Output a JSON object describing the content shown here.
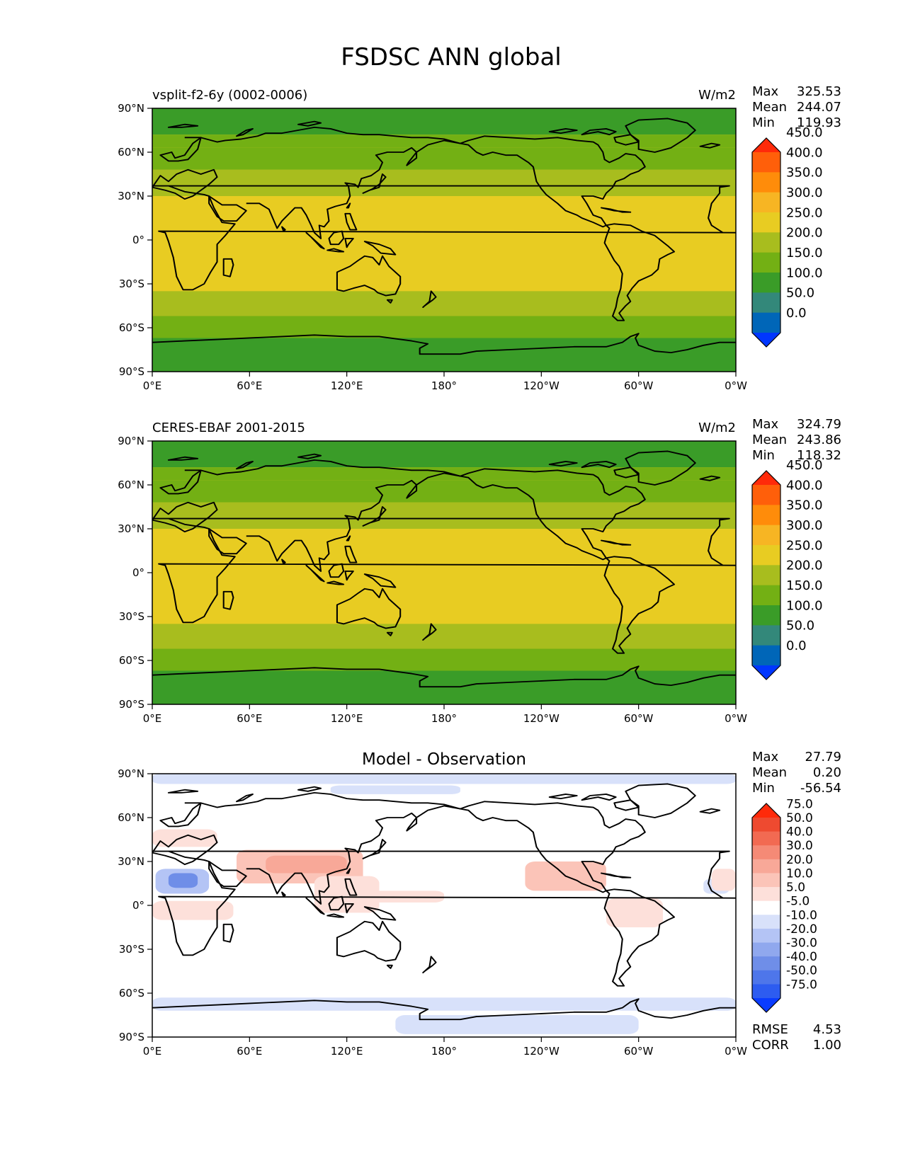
{
  "figure": {
    "title": "FSDSC ANN global"
  },
  "axes": {
    "lat_ticks": [
      "90°N",
      "60°N",
      "30°N",
      "0°",
      "30°S",
      "60°S",
      "90°S"
    ],
    "lon_ticks": [
      "0°E",
      "60°E",
      "120°E",
      "180°",
      "120°W",
      "60°W",
      "0°W"
    ]
  },
  "colors": {
    "abs": [
      "#0036ff",
      "#0066b8",
      "#33887a",
      "#3a9c28",
      "#73b014",
      "#a8bd1e",
      "#e8cc22",
      "#f7b523",
      "#ff8c0a",
      "#ff5f0a",
      "#ff2a0a"
    ],
    "diff": [
      "#0a3cff",
      "#2d5cf0",
      "#4e76ea",
      "#6f8ee8",
      "#90a8ee",
      "#b4c4f5",
      "#d8e1fa",
      "#ffffff",
      "#fde0da",
      "#fbc4b8",
      "#f8a898",
      "#f58a76",
      "#f26a52",
      "#ee4a30",
      "#ff2a0a"
    ]
  },
  "chart_data": [
    {
      "type": "heatmap",
      "panel": "test",
      "title": "vsplit-f2-6y (0002-0006)",
      "units": "W/m2",
      "stats": {
        "max_label": "Max",
        "max": "325.53",
        "mean_label": "Mean",
        "mean": "244.07",
        "min_label": "Min",
        "min": "119.93"
      },
      "colorbar_levels": [
        "0.0",
        "50.0",
        "100.0",
        "150.0",
        "200.0",
        "250.0",
        "300.0",
        "350.0",
        "400.0",
        "450.0"
      ],
      "xlim": [
        0,
        360
      ],
      "ylim": [
        -90,
        90
      ],
      "lat_bands": [
        {
          "from": 90,
          "to": 72,
          "value": 125
        },
        {
          "from": 72,
          "to": 63,
          "value": 175
        },
        {
          "from": 63,
          "to": 48,
          "value": 175
        },
        {
          "from": 48,
          "to": 30,
          "value": 225
        },
        {
          "from": 30,
          "to": -35,
          "value": 275
        },
        {
          "from": -35,
          "to": -52,
          "value": 225
        },
        {
          "from": -52,
          "to": -67,
          "value": 175
        },
        {
          "from": -67,
          "to": -90,
          "value": 125
        }
      ]
    },
    {
      "type": "heatmap",
      "panel": "reference",
      "title": "CERES-EBAF 2001-2015",
      "units": "W/m2",
      "stats": {
        "max_label": "Max",
        "max": "324.79",
        "mean_label": "Mean",
        "mean": "243.86",
        "min_label": "Min",
        "min": "118.32"
      },
      "colorbar_levels": [
        "0.0",
        "50.0",
        "100.0",
        "150.0",
        "200.0",
        "250.0",
        "300.0",
        "350.0",
        "400.0",
        "450.0"
      ],
      "xlim": [
        0,
        360
      ],
      "ylim": [
        -90,
        90
      ],
      "lat_bands": [
        {
          "from": 90,
          "to": 72,
          "value": 125
        },
        {
          "from": 72,
          "to": 63,
          "value": 175
        },
        {
          "from": 63,
          "to": 48,
          "value": 175
        },
        {
          "from": 48,
          "to": 30,
          "value": 225
        },
        {
          "from": 30,
          "to": -35,
          "value": 275
        },
        {
          "from": -35,
          "to": -52,
          "value": 225
        },
        {
          "from": -52,
          "to": -67,
          "value": 175
        },
        {
          "from": -67,
          "to": -90,
          "value": 125
        }
      ]
    },
    {
      "type": "heatmap",
      "panel": "difference",
      "title": "Model - Observation",
      "stats": {
        "max_label": "Max",
        "max": "27.79",
        "mean_label": "Mean",
        "mean": "0.20",
        "min_label": "Min",
        "min": "-56.54"
      },
      "metrics": {
        "rmse_label": "RMSE",
        "rmse": "4.53",
        "corr_label": "CORR",
        "corr": "1.00"
      },
      "colorbar_levels": [
        "-75.0",
        "-50.0",
        "-40.0",
        "-30.0",
        "-20.0",
        "-10.0",
        "-5.0",
        "5.0",
        "10.0",
        "20.0",
        "30.0",
        "40.0",
        "50.0",
        "75.0"
      ],
      "xlim": [
        0,
        360
      ],
      "ylim": [
        -90,
        90
      ],
      "anomalies": [
        {
          "lon": [
            0,
            360
          ],
          "lat": [
            83,
            90
          ],
          "value": -7
        },
        {
          "lon": [
            110,
            190
          ],
          "lat": [
            76,
            82
          ],
          "value": -7
        },
        {
          "lon": [
            0,
            360
          ],
          "lat": [
            -72,
            -63
          ],
          "value": -7
        },
        {
          "lon": [
            150,
            300
          ],
          "lat": [
            -88,
            -75
          ],
          "value": -7
        },
        {
          "lon": [
            2,
            35
          ],
          "lat": [
            8,
            25
          ],
          "value": -15
        },
        {
          "lon": [
            10,
            28
          ],
          "lat": [
            12,
            22
          ],
          "value": -35
        },
        {
          "lon": [
            340,
            356
          ],
          "lat": [
            8,
            18
          ],
          "value": -7
        },
        {
          "lon": [
            52,
            130
          ],
          "lat": [
            15,
            38
          ],
          "value": 15
        },
        {
          "lon": [
            70,
            120
          ],
          "lat": [
            22,
            34
          ],
          "value": 25
        },
        {
          "lon": [
            100,
            140
          ],
          "lat": [
            -5,
            20
          ],
          "value": 7
        },
        {
          "lon": [
            120,
            180
          ],
          "lat": [
            2,
            10
          ],
          "value": 7
        },
        {
          "lon": [
            230,
            280
          ],
          "lat": [
            10,
            30
          ],
          "value": 12
        },
        {
          "lon": [
            280,
            315
          ],
          "lat": [
            -15,
            5
          ],
          "value": 7
        },
        {
          "lon": [
            0,
            50
          ],
          "lat": [
            -10,
            3
          ],
          "value": 7
        },
        {
          "lon": [
            0,
            40
          ],
          "lat": [
            40,
            52
          ],
          "value": 7
        },
        {
          "lon": [
            345,
            360
          ],
          "lat": [
            10,
            25
          ],
          "value": 7
        }
      ]
    }
  ]
}
